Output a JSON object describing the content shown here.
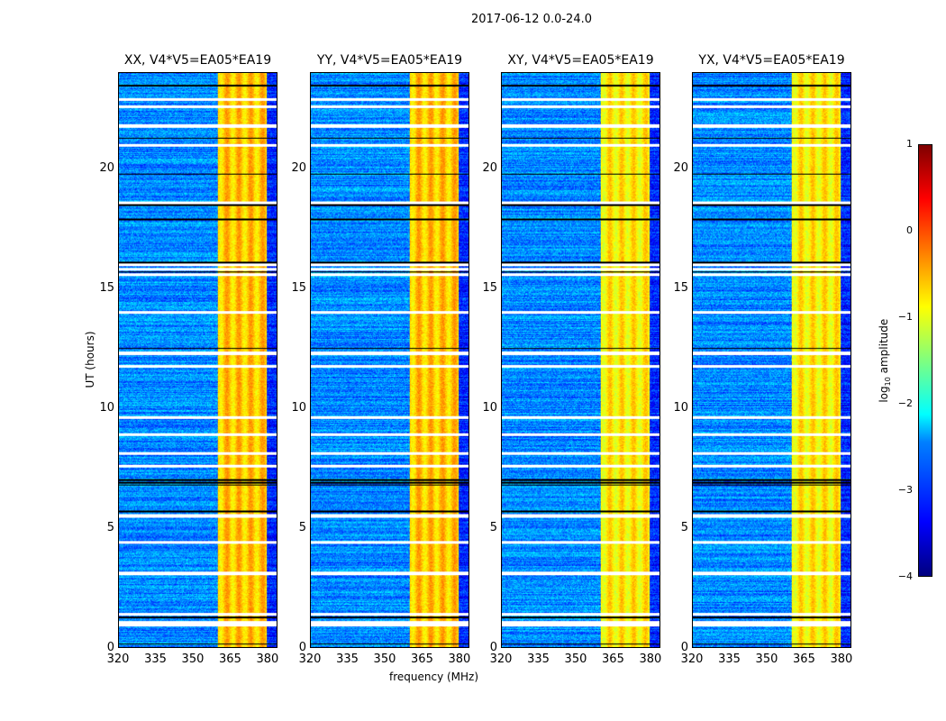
{
  "suptitle": "2017-06-12 0.0-24.0",
  "chart_data": {
    "type": "heatmap",
    "title": "2017-06-12 0.0-24.0",
    "xlabel": "frequency (MHz)",
    "ylabel": "UT (hours)",
    "xlim": [
      320,
      384
    ],
    "ylim": [
      0,
      24
    ],
    "xticks": [
      "320",
      "335",
      "350",
      "365",
      "380"
    ],
    "xtick_values": [
      320,
      335,
      350,
      365,
      380
    ],
    "yticks": [
      "0",
      "5",
      "10",
      "15",
      "20"
    ],
    "ytick_values": [
      0,
      5,
      10,
      15,
      20
    ],
    "colormap": "jet",
    "clim": [
      -4,
      1
    ],
    "colorbar_label": "log10 amplitude",
    "colorbar_label_main": "log",
    "colorbar_label_sub": "10",
    "colorbar_label_rest": " amplitude",
    "colorbar_ticks": [
      "1",
      "0",
      "−1",
      "−2",
      "−3",
      "−4"
    ],
    "colorbar_tick_values": [
      1,
      0,
      -1,
      -2,
      -3,
      -4
    ],
    "background_level": -2.7,
    "bright_band_MHz": [
      360,
      380
    ],
    "bright_band_level": -0.8,
    "flagged_hours_white": [
      0.95,
      1.05,
      1.4,
      3.1,
      4.4,
      5.5,
      7.6,
      8.1,
      8.9,
      9.6,
      11.75,
      12.3,
      14.0,
      15.6,
      15.8,
      16.0,
      18.6,
      21.0,
      21.8,
      22.6,
      22.9
    ],
    "flagged_hours_black": [
      0.15,
      1.25,
      5.7,
      6.8,
      6.9,
      7.0,
      12.35,
      12.5,
      15.7,
      16.1,
      17.9,
      18.5,
      19.8,
      21.3,
      23.5
    ],
    "panels": [
      {
        "title": "XX, V4*V5=EA05*EA19"
      },
      {
        "title": "YY, V4*V5=EA05*EA19"
      },
      {
        "title": "XY, V4*V5=EA05*EA19"
      },
      {
        "title": "YX, V4*V5=EA05*EA19"
      }
    ]
  }
}
